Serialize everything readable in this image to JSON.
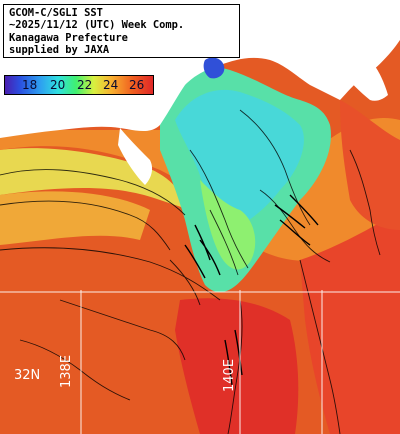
{
  "title": {
    "lines": [
      "GCOM-C/SGLI SST",
      "~2025/11/12 (UTC) Week Comp.",
      "Kanagawa Prefecture",
      "supplied by JAXA"
    ]
  },
  "legend": {
    "labels": [
      "18",
      "20",
      "22",
      "24",
      "26"
    ]
  },
  "grid": {
    "lat_label": "32N",
    "lon_label_1": "138E",
    "lon_label_2": "140E"
  },
  "colors": {
    "land": "#ffffff",
    "lake": "#3050d8",
    "warm": "#e85020",
    "hot": "#e02a28",
    "mid": "#f5a030",
    "cool": "#50e0b0",
    "cold": "#40d0e8",
    "contour": "#000000"
  }
}
